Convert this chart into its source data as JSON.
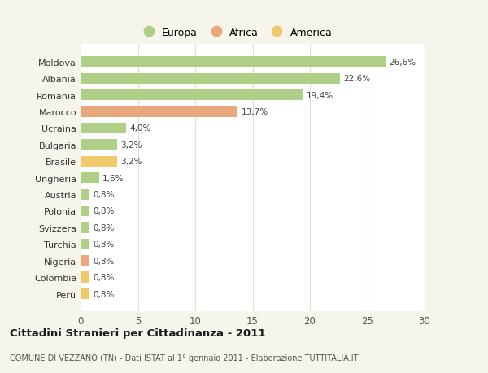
{
  "categories": [
    "Moldova",
    "Albania",
    "Romania",
    "Marocco",
    "Ucraina",
    "Bulgaria",
    "Brasile",
    "Ungheria",
    "Austria",
    "Polonia",
    "Svizzera",
    "Turchia",
    "Nigeria",
    "Colombia",
    "Perù"
  ],
  "values": [
    26.6,
    22.6,
    19.4,
    13.7,
    4.0,
    3.2,
    3.2,
    1.6,
    0.8,
    0.8,
    0.8,
    0.8,
    0.8,
    0.8,
    0.8
  ],
  "continents": [
    "Europa",
    "Europa",
    "Europa",
    "Africa",
    "Europa",
    "Europa",
    "America",
    "Europa",
    "Europa",
    "Europa",
    "Europa",
    "Europa",
    "Africa",
    "America",
    "America"
  ],
  "labels": [
    "26,6%",
    "22,6%",
    "19,4%",
    "13,7%",
    "4,0%",
    "3,2%",
    "3,2%",
    "1,6%",
    "0,8%",
    "0,8%",
    "0,8%",
    "0,8%",
    "0,8%",
    "0,8%",
    "0,8%"
  ],
  "colors": {
    "Europa": "#aecf85",
    "Africa": "#e8a87c",
    "America": "#f0c96a"
  },
  "title": "Cittadini Stranieri per Cittadinanza - 2011",
  "subtitle": "COMUNE DI VEZZANO (TN) - Dati ISTAT al 1° gennaio 2011 - Elaborazione TUTTITALIA.IT",
  "xlim": [
    0,
    30
  ],
  "xticks": [
    0,
    5,
    10,
    15,
    20,
    25,
    30
  ],
  "background_color": "#f5f5eb",
  "plot_background": "#ffffff",
  "grid_color": "#e0e0d0"
}
